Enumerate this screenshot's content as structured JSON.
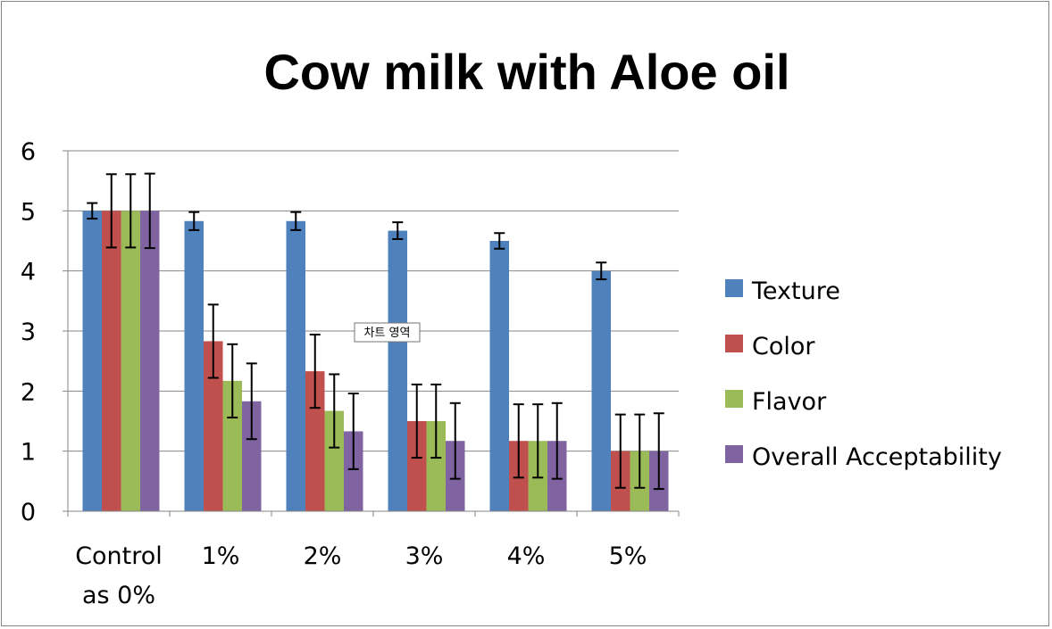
{
  "chart_data": {
    "type": "bar",
    "title": "Cow milk with Aloe oil",
    "xlabel": "",
    "ylabel": "",
    "ylim": [
      0,
      6
    ],
    "yticks": [
      0,
      1,
      2,
      3,
      4,
      5,
      6
    ],
    "categories": [
      [
        "Control",
        "as 0%"
      ],
      [
        "1%"
      ],
      [
        "2%"
      ],
      [
        "3%"
      ],
      [
        "4%"
      ],
      [
        "5%"
      ]
    ],
    "series": [
      {
        "name": "Texture",
        "color": "#4F81BD",
        "values": [
          5.0,
          4.83,
          4.83,
          4.67,
          4.5,
          4.0
        ],
        "errors": [
          0.13,
          0.15,
          0.15,
          0.14,
          0.13,
          0.14
        ]
      },
      {
        "name": "Color",
        "color": "#C0504D",
        "values": [
          5.0,
          2.83,
          2.33,
          1.5,
          1.17,
          1.0
        ],
        "errors": [
          0.61,
          0.61,
          0.61,
          0.61,
          0.61,
          0.61
        ]
      },
      {
        "name": "Flavor",
        "color": "#9BBB59",
        "values": [
          5.0,
          2.17,
          1.67,
          1.5,
          1.17,
          1.0
        ],
        "errors": [
          0.61,
          0.61,
          0.61,
          0.61,
          0.61,
          0.61
        ]
      },
      {
        "name": "Overall Acceptability",
        "color": "#8064A2",
        "values": [
          5.0,
          1.83,
          1.33,
          1.17,
          1.17,
          1.0
        ],
        "errors": [
          0.62,
          0.63,
          0.63,
          0.63,
          0.63,
          0.63
        ]
      }
    ],
    "grid": true,
    "legend_position": "right",
    "tooltip": "차트 영역"
  }
}
